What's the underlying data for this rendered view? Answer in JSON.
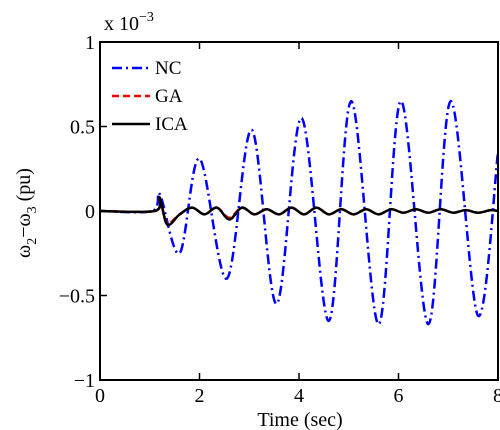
{
  "chart_data": {
    "type": "line",
    "title": "",
    "xlabel": "Time (sec)",
    "ylabel_main": "ω",
    "ylabel_sub1": "2",
    "ylabel_minus": "−ω",
    "ylabel_sub2": "3",
    "ylabel_unit": " (pu)",
    "y_multiplier_base": "x 10",
    "y_multiplier_exp": "−3",
    "xlim": [
      0,
      8
    ],
    "ylim": [
      -1,
      1
    ],
    "xticks": [
      0,
      2,
      4,
      6,
      8
    ],
    "xtick_labels": [
      "0",
      "2",
      "4",
      "6",
      "8"
    ],
    "yticks": [
      -1,
      -0.5,
      0,
      0.5,
      1
    ],
    "ytick_labels": [
      "−1",
      "−0.5",
      "0",
      "0.5",
      "1"
    ],
    "legend_position": "top-left",
    "series": [
      {
        "name": "NC",
        "color": "#0000ff",
        "style": "dash-dot",
        "x": [
          0,
          1.05,
          1.2,
          1.6,
          2.0,
          2.55,
          3.05,
          3.55,
          4.05,
          4.6,
          5.05,
          5.6,
          6.05,
          6.6,
          7.05,
          7.6,
          8.0
        ],
        "y": [
          0,
          0,
          0.1,
          -0.25,
          0.31,
          -0.4,
          0.48,
          -0.55,
          0.55,
          -0.65,
          0.65,
          -0.67,
          0.65,
          -0.67,
          0.65,
          -0.62,
          0.35
        ]
      },
      {
        "name": "GA",
        "color": "#ff0000",
        "style": "dashed",
        "x": [
          0,
          1.1,
          1.2,
          1.35,
          1.6,
          1.85,
          2.1,
          2.35,
          2.6,
          2.85,
          3.1,
          3.35,
          3.6,
          3.85,
          4.1,
          4.35,
          4.6,
          4.85,
          5.1,
          5.35,
          5.6,
          5.85,
          6.1,
          6.35,
          6.6,
          6.85,
          7.1,
          7.35,
          7.6,
          7.85,
          8.0
        ],
        "y": [
          0,
          0,
          0.07,
          -0.07,
          -0.02,
          0.02,
          -0.02,
          0.02,
          -0.04,
          0.02,
          -0.02,
          0.01,
          -0.02,
          0.02,
          -0.02,
          0.02,
          -0.02,
          0.01,
          -0.02,
          0.01,
          -0.02,
          0.01,
          -0.01,
          0.01,
          -0.01,
          0.01,
          -0.01,
          0.005,
          -0.01,
          0.005,
          0
        ]
      },
      {
        "name": "ICA",
        "color": "#000000",
        "style": "solid",
        "x": [
          0,
          1.1,
          1.2,
          1.35,
          1.6,
          1.85,
          2.1,
          2.35,
          2.6,
          2.85,
          3.1,
          3.35,
          3.6,
          3.85,
          4.1,
          4.35,
          4.6,
          4.85,
          5.1,
          5.35,
          5.6,
          5.85,
          6.1,
          6.35,
          6.6,
          6.85,
          7.1,
          7.35,
          7.6,
          7.85,
          8.0
        ],
        "y": [
          0,
          0,
          0.08,
          -0.08,
          -0.02,
          0.02,
          -0.02,
          0.02,
          -0.05,
          0.02,
          -0.02,
          0.01,
          -0.02,
          0.02,
          -0.02,
          0.02,
          -0.02,
          0.01,
          -0.02,
          0.01,
          -0.02,
          0.01,
          -0.01,
          0.01,
          -0.01,
          0.01,
          -0.01,
          0.005,
          -0.01,
          0.005,
          0
        ]
      }
    ]
  }
}
